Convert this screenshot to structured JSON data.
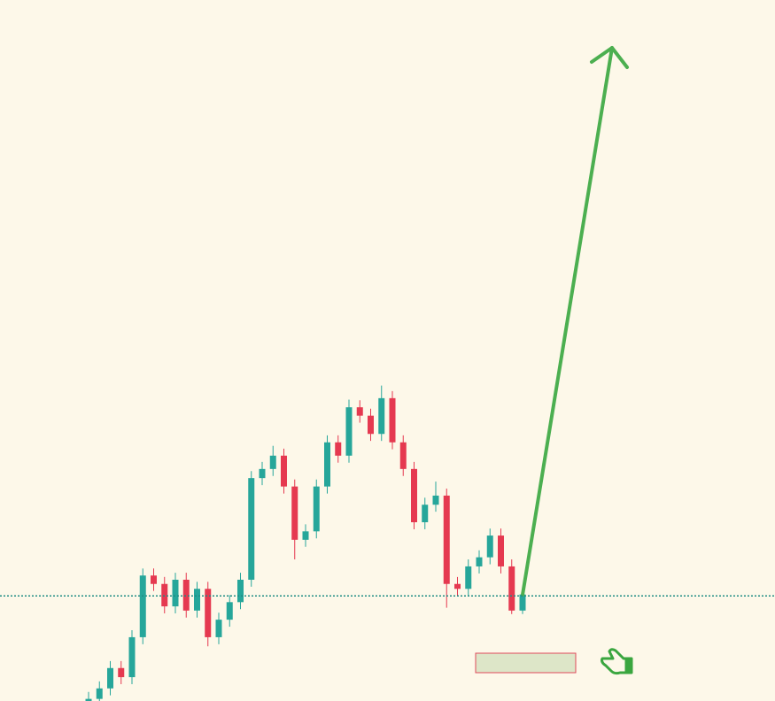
{
  "chart_data": {
    "type": "candlestick",
    "up_color": "#26a69a",
    "down_color": "#e53950",
    "level_color": "#1e8c84",
    "ylim": [
      0,
      100
    ],
    "level": 15.0,
    "open": [
      0.0,
      0.3,
      1.8,
      4.7,
      3.4,
      9.1,
      17.9,
      16.7,
      13.5,
      17.3,
      12.9,
      16.0,
      9.1,
      11.6,
      14.1,
      17.3,
      31.8,
      33.1,
      35.0,
      30.6,
      23.0,
      24.2,
      30.6,
      36.9,
      35.0,
      41.9,
      40.7,
      38.1,
      43.2,
      36.9,
      33.1,
      25.5,
      28.0,
      29.3,
      16.7,
      16.0,
      19.2,
      20.5,
      23.6,
      19.2,
      12.9
    ],
    "high": [
      1.3,
      2.8,
      5.7,
      5.7,
      10.1,
      18.9,
      18.9,
      17.7,
      18.3,
      18.3,
      17.0,
      17.0,
      12.6,
      15.1,
      18.3,
      32.8,
      34.1,
      36.4,
      36.0,
      31.6,
      25.2,
      31.6,
      37.9,
      37.9,
      43.0,
      42.9,
      41.7,
      45.0,
      44.2,
      37.9,
      34.1,
      29.0,
      31.3,
      30.3,
      17.7,
      20.2,
      21.5,
      24.6,
      24.6,
      20.2,
      16.2
    ],
    "low": [
      -1.0,
      -0.7,
      0.8,
      2.4,
      2.4,
      8.1,
      15.7,
      12.5,
      12.5,
      11.9,
      11.9,
      7.8,
      8.1,
      10.6,
      13.1,
      16.3,
      30.8,
      32.1,
      29.6,
      20.2,
      22.0,
      23.2,
      29.6,
      34.0,
      34.0,
      39.7,
      37.1,
      37.1,
      35.9,
      32.1,
      24.5,
      24.5,
      27.0,
      13.3,
      15.0,
      15.0,
      18.2,
      19.5,
      18.2,
      12.4,
      12.4
    ],
    "close": [
      0.3,
      1.8,
      4.7,
      3.4,
      9.1,
      17.9,
      16.7,
      13.5,
      17.3,
      12.9,
      16.0,
      9.1,
      11.6,
      14.1,
      17.3,
      31.8,
      33.1,
      35.0,
      30.6,
      23.0,
      24.2,
      30.6,
      36.9,
      35.0,
      41.9,
      40.7,
      38.1,
      43.2,
      36.9,
      33.1,
      25.5,
      28.0,
      29.3,
      16.7,
      16.0,
      19.2,
      20.5,
      23.6,
      19.2,
      12.9,
      15.2
    ]
  }
}
